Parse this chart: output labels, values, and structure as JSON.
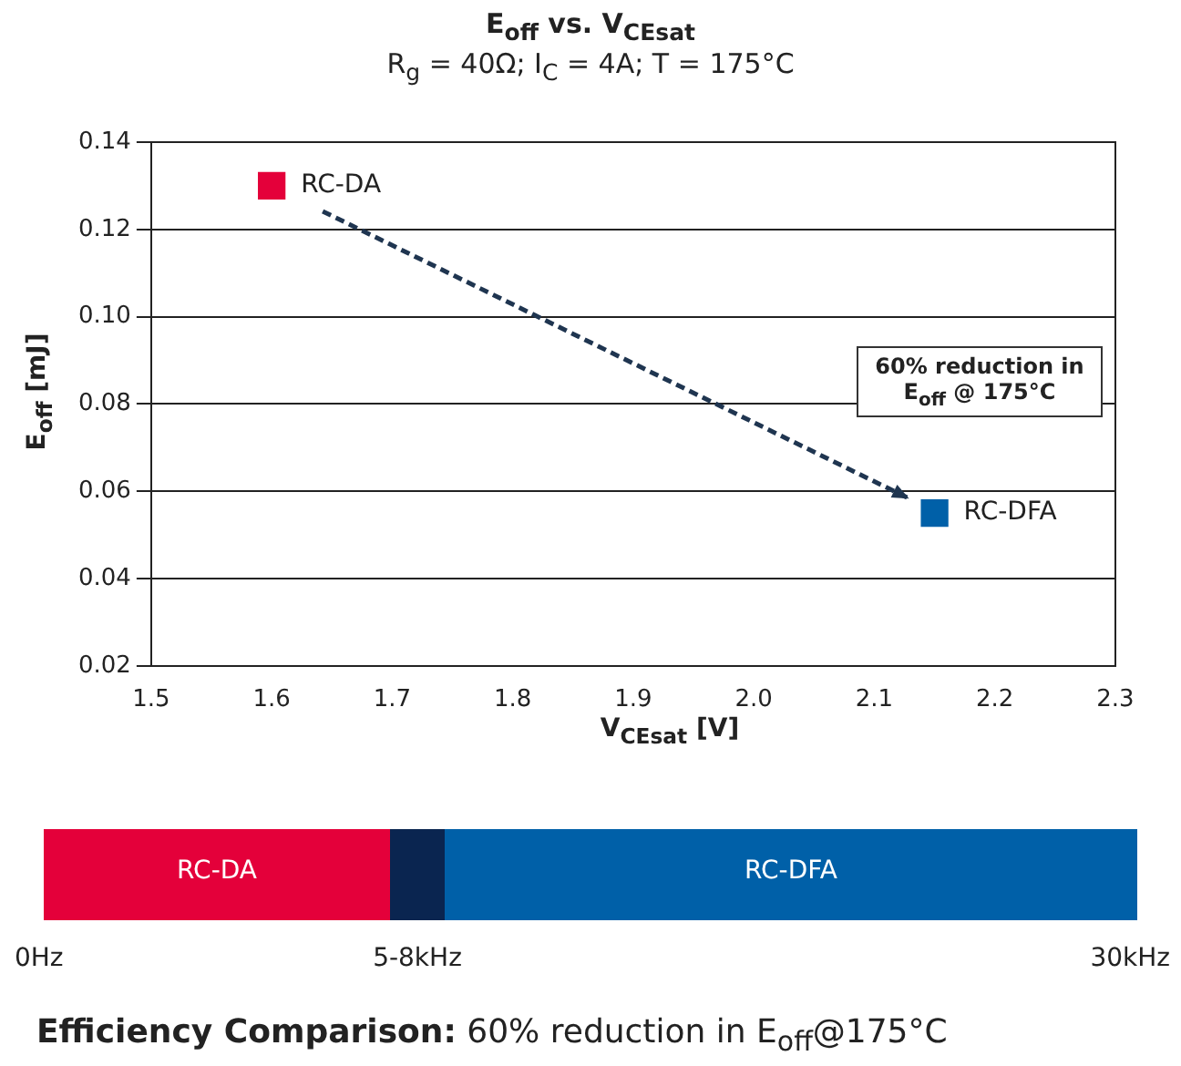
{
  "chart_data": [
    {
      "type": "scatter",
      "title": "E$_{off}$ vs. V$_{CEsat}$",
      "subtitle": "R$_{g}$ = 40Ω; I$_{C}$ = 4A; T = 175°C",
      "xlabel": "V$_{CEsat}$ [V]",
      "ylabel": "E$_{off}$ [mJ]",
      "annotations": [
        "60% reduction in E$_{off}$ @ 175°C"
      ],
      "series": [
        {
          "name": "RC-DA",
          "color": "#e4003a",
          "x": [
            1.6
          ],
          "values": [
            0.13
          ]
        },
        {
          "name": "RC-DFA",
          "color": "#0060a8",
          "x": [
            2.15
          ],
          "values": [
            0.055
          ]
        }
      ],
      "marker": "square",
      "xlim": [
        1.5,
        2.3
      ],
      "xticks": [
        1.5,
        1.6,
        1.7,
        1.8,
        1.9,
        {
          "value": 2,
          "label": "2.0"
        },
        2.1,
        2.2,
        2.3
      ],
      "ylim": [
        0.02,
        0.14
      ],
      "yticks": [
        0.02,
        0.04,
        0.06,
        0.08,
        {
          "value": 0.1,
          "label": "0.10"
        },
        0.12,
        0.14
      ],
      "grid": "y",
      "legend": false
    },
    {
      "type": "other",
      "colors": [
        "#e4003a",
        "#0a2550",
        "#0060a8"
      ],
      "annotations": [
        "RC-DA",
        "RC-DFA",
        "0Hz",
        "5-8kHz",
        "30kHz",
        "Efficiency Comparison:",
        "60% reduction in E$_{off}$@175°C"
      ]
    }
  ]
}
